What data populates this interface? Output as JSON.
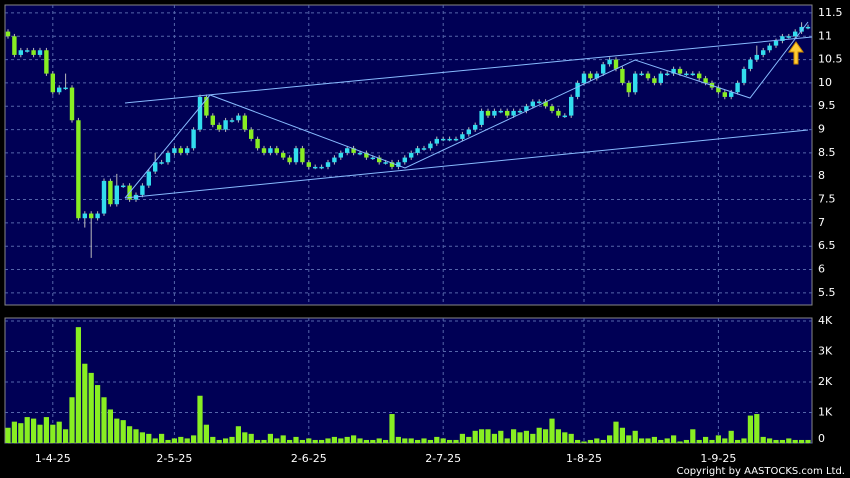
{
  "chart_data": {
    "type": "candlestick",
    "up_color": "#33ddee",
    "down_color": "#88ee22",
    "volume_color": "#88ee22",
    "ylim": [
      5.24,
      11.67
    ],
    "yticks": [
      5.5,
      6,
      6.5,
      7,
      7.5,
      8,
      8.5,
      9,
      9.5,
      10,
      10.5,
      11,
      11.5
    ],
    "volume_ylim": [
      0,
      4100
    ],
    "volume_ticks": [
      0,
      {
        "value": 1000,
        "label": "1K"
      },
      {
        "value": 2000,
        "label": "2K"
      },
      {
        "value": 3000,
        "label": "3K"
      },
      {
        "value": 4000,
        "label": "4K"
      }
    ],
    "grid": true,
    "copyright": "Copyright by AASTOCKS.com Ltd.",
    "categories": [
      null,
      null,
      null,
      null,
      null,
      null,
      null,
      "1-4-25",
      null,
      null,
      null,
      null,
      null,
      null,
      null,
      null,
      null,
      null,
      null,
      null,
      null,
      null,
      null,
      null,
      null,
      null,
      "2-5-25",
      null,
      null,
      null,
      null,
      null,
      null,
      null,
      null,
      null,
      null,
      null,
      null,
      null,
      null,
      null,
      null,
      null,
      null,
      null,
      null,
      "2-6-25",
      null,
      null,
      null,
      null,
      null,
      null,
      null,
      null,
      null,
      null,
      null,
      null,
      null,
      null,
      null,
      null,
      null,
      null,
      null,
      null,
      "2-7-25",
      null,
      null,
      null,
      null,
      null,
      null,
      null,
      null,
      null,
      null,
      null,
      null,
      null,
      null,
      null,
      null,
      null,
      null,
      null,
      null,
      null,
      "1-8-25",
      null,
      null,
      null,
      null,
      null,
      null,
      null,
      null,
      null,
      null,
      null,
      null,
      null,
      null,
      null,
      null,
      null,
      null,
      null,
      null,
      "1-9-25",
      null,
      null,
      null,
      null,
      null,
      null,
      null,
      null,
      null,
      null,
      null,
      null,
      null,
      null
    ],
    "ohlc": [
      [
        11.1,
        11.15,
        10.95,
        11.0
      ],
      [
        11.0,
        11.05,
        10.55,
        10.6
      ],
      [
        10.6,
        10.75,
        10.55,
        10.7
      ],
      [
        10.7,
        10.75,
        10.65,
        10.7
      ],
      [
        10.7,
        10.75,
        10.55,
        10.6
      ],
      [
        10.6,
        10.75,
        10.55,
        10.7
      ],
      [
        10.7,
        10.75,
        10.15,
        10.2
      ],
      [
        10.2,
        10.25,
        9.75,
        9.8
      ],
      [
        9.8,
        9.95,
        9.75,
        9.9
      ],
      [
        9.9,
        10.2,
        9.85,
        9.9
      ],
      [
        9.9,
        9.95,
        9.15,
        9.2
      ],
      [
        9.2,
        9.25,
        7.05,
        7.1
      ],
      [
        7.1,
        7.25,
        6.9,
        7.2
      ],
      [
        7.2,
        7.25,
        6.25,
        7.1
      ],
      [
        7.1,
        7.25,
        7.05,
        7.2
      ],
      [
        7.2,
        7.95,
        7.15,
        7.9
      ],
      [
        7.9,
        7.95,
        7.35,
        7.4
      ],
      [
        7.4,
        8.05,
        7.35,
        7.8
      ],
      [
        7.8,
        7.85,
        7.75,
        7.8
      ],
      [
        7.8,
        7.85,
        7.45,
        7.5
      ],
      [
        7.5,
        7.65,
        7.45,
        7.6
      ],
      [
        7.6,
        7.85,
        7.55,
        7.8
      ],
      [
        7.8,
        8.15,
        7.75,
        8.1
      ],
      [
        8.1,
        8.5,
        8.05,
        8.3
      ],
      [
        8.3,
        8.35,
        8.25,
        8.3
      ],
      [
        8.3,
        8.55,
        8.25,
        8.5
      ],
      [
        8.5,
        8.65,
        8.45,
        8.6
      ],
      [
        8.6,
        8.65,
        8.45,
        8.5
      ],
      [
        8.5,
        8.65,
        8.45,
        8.6
      ],
      [
        8.6,
        9.05,
        8.55,
        9.0
      ],
      [
        9.0,
        9.75,
        8.95,
        9.7
      ],
      [
        9.7,
        9.75,
        9.25,
        9.3
      ],
      [
        9.3,
        9.35,
        9.05,
        9.1
      ],
      [
        9.1,
        9.15,
        8.95,
        9.0
      ],
      [
        9.0,
        9.25,
        8.95,
        9.2
      ],
      [
        9.2,
        9.25,
        9.15,
        9.2
      ],
      [
        9.2,
        9.35,
        9.15,
        9.3
      ],
      [
        9.3,
        9.35,
        8.95,
        9.0
      ],
      [
        9.0,
        9.05,
        8.75,
        8.8
      ],
      [
        8.8,
        8.85,
        8.55,
        8.6
      ],
      [
        8.6,
        8.65,
        8.45,
        8.5
      ],
      [
        8.5,
        8.65,
        8.45,
        8.6
      ],
      [
        8.6,
        8.65,
        8.45,
        8.5
      ],
      [
        8.5,
        8.55,
        8.35,
        8.4
      ],
      [
        8.4,
        8.45,
        8.25,
        8.3
      ],
      [
        8.3,
        8.65,
        8.25,
        8.6
      ],
      [
        8.6,
        8.65,
        8.25,
        8.3
      ],
      [
        8.3,
        8.35,
        8.15,
        8.2
      ],
      [
        8.2,
        8.25,
        8.15,
        8.2
      ],
      [
        8.2,
        8.25,
        8.15,
        8.2
      ],
      [
        8.2,
        8.35,
        8.15,
        8.3
      ],
      [
        8.3,
        8.45,
        8.25,
        8.4
      ],
      [
        8.4,
        8.55,
        8.35,
        8.5
      ],
      [
        8.5,
        8.65,
        8.45,
        8.6
      ],
      [
        8.6,
        8.65,
        8.45,
        8.5
      ],
      [
        8.5,
        8.55,
        8.45,
        8.5
      ],
      [
        8.5,
        8.55,
        8.35,
        8.4
      ],
      [
        8.4,
        8.45,
        8.35,
        8.4
      ],
      [
        8.4,
        8.45,
        8.25,
        8.3
      ],
      [
        8.3,
        8.35,
        8.25,
        8.3
      ],
      [
        8.3,
        8.35,
        8.15,
        8.2
      ],
      [
        8.2,
        8.35,
        8.15,
        8.3
      ],
      [
        8.3,
        8.45,
        8.25,
        8.4
      ],
      [
        8.4,
        8.55,
        8.35,
        8.5
      ],
      [
        8.5,
        8.65,
        8.45,
        8.6
      ],
      [
        8.6,
        8.65,
        8.55,
        8.6
      ],
      [
        8.6,
        8.75,
        8.55,
        8.7
      ],
      [
        8.7,
        8.85,
        8.65,
        8.8
      ],
      [
        8.8,
        8.85,
        8.75,
        8.8
      ],
      [
        8.8,
        8.85,
        8.75,
        8.8
      ],
      [
        8.8,
        8.85,
        8.75,
        8.8
      ],
      [
        8.8,
        8.95,
        8.75,
        8.9
      ],
      [
        8.9,
        9.05,
        8.85,
        9.0
      ],
      [
        9.0,
        9.15,
        8.95,
        9.1
      ],
      [
        9.1,
        9.45,
        9.05,
        9.4
      ],
      [
        9.4,
        9.45,
        9.25,
        9.3
      ],
      [
        9.3,
        9.45,
        9.25,
        9.4
      ],
      [
        9.4,
        9.45,
        9.35,
        9.4
      ],
      [
        9.4,
        9.45,
        9.25,
        9.3
      ],
      [
        9.3,
        9.45,
        9.25,
        9.4
      ],
      [
        9.4,
        9.45,
        9.35,
        9.4
      ],
      [
        9.4,
        9.55,
        9.35,
        9.5
      ],
      [
        9.5,
        9.65,
        9.45,
        9.6
      ],
      [
        9.6,
        9.65,
        9.55,
        9.6
      ],
      [
        9.6,
        9.65,
        9.45,
        9.5
      ],
      [
        9.5,
        9.55,
        9.35,
        9.4
      ],
      [
        9.4,
        9.45,
        9.25,
        9.3
      ],
      [
        9.3,
        9.35,
        9.25,
        9.3
      ],
      [
        9.3,
        9.75,
        9.25,
        9.7
      ],
      [
        9.7,
        10.05,
        9.65,
        10.0
      ],
      [
        10.0,
        10.25,
        9.95,
        10.2
      ],
      [
        10.2,
        10.25,
        10.05,
        10.1
      ],
      [
        10.1,
        10.25,
        10.05,
        10.2
      ],
      [
        10.2,
        10.45,
        10.15,
        10.4
      ],
      [
        10.4,
        10.55,
        10.35,
        10.5
      ],
      [
        10.5,
        10.55,
        10.25,
        10.3
      ],
      [
        10.3,
        10.35,
        9.95,
        10.0
      ],
      [
        10.0,
        10.05,
        9.7,
        9.8
      ],
      [
        9.8,
        10.25,
        9.75,
        10.2
      ],
      [
        10.2,
        10.25,
        10.15,
        10.2
      ],
      [
        10.2,
        10.25,
        10.05,
        10.1
      ],
      [
        10.1,
        10.15,
        9.95,
        10.0
      ],
      [
        10.0,
        10.25,
        9.95,
        10.2
      ],
      [
        10.2,
        10.25,
        10.15,
        10.2
      ],
      [
        10.2,
        10.35,
        10.15,
        10.3
      ],
      [
        10.3,
        10.35,
        10.15,
        10.2
      ],
      [
        10.2,
        10.25,
        10.15,
        10.2
      ],
      [
        10.2,
        10.25,
        10.15,
        10.2
      ],
      [
        10.2,
        10.25,
        10.05,
        10.1
      ],
      [
        10.1,
        10.15,
        9.95,
        10.0
      ],
      [
        10.0,
        10.05,
        9.85,
        9.9
      ],
      [
        9.9,
        9.95,
        9.75,
        9.8
      ],
      [
        9.8,
        9.85,
        9.65,
        9.7
      ],
      [
        9.7,
        9.85,
        9.65,
        9.8
      ],
      [
        9.8,
        10.05,
        9.75,
        10.0
      ],
      [
        10.0,
        10.35,
        9.95,
        10.3
      ],
      [
        10.3,
        10.55,
        10.25,
        10.5
      ],
      [
        10.5,
        10.8,
        10.45,
        10.6
      ],
      [
        10.6,
        10.75,
        10.55,
        10.7
      ],
      [
        10.7,
        10.85,
        10.65,
        10.8
      ],
      [
        10.8,
        10.95,
        10.75,
        10.9
      ],
      [
        10.9,
        11.05,
        10.85,
        11.0
      ],
      [
        11.0,
        11.05,
        10.95,
        11.0
      ],
      [
        11.0,
        11.15,
        10.95,
        11.1
      ],
      [
        11.1,
        11.3,
        11.05,
        11.2
      ],
      [
        11.2,
        11.25,
        11.15,
        11.2
      ]
    ],
    "volume": [
      500,
      700,
      650,
      850,
      800,
      600,
      850,
      600,
      700,
      450,
      1500,
      3800,
      2600,
      2300,
      1900,
      1500,
      1100,
      800,
      750,
      550,
      450,
      350,
      300,
      150,
      300,
      100,
      150,
      200,
      150,
      250,
      1550,
      600,
      200,
      100,
      150,
      200,
      550,
      350,
      300,
      100,
      100,
      300,
      150,
      250,
      100,
      200,
      100,
      150,
      100,
      100,
      150,
      200,
      150,
      200,
      250,
      150,
      100,
      100,
      150,
      100,
      950,
      200,
      150,
      150,
      100,
      150,
      100,
      200,
      150,
      100,
      100,
      300,
      200,
      400,
      450,
      450,
      300,
      400,
      150,
      450,
      350,
      400,
      300,
      500,
      450,
      800,
      450,
      350,
      300,
      100,
      50,
      100,
      150,
      100,
      250,
      700,
      500,
      250,
      400,
      150,
      150,
      200,
      100,
      150,
      250,
      50,
      100,
      450,
      100,
      200,
      100,
      250,
      150,
      400,
      100,
      150,
      900,
      950,
      200,
      150,
      100,
      100,
      150,
      100,
      100,
      100
    ]
  }
}
